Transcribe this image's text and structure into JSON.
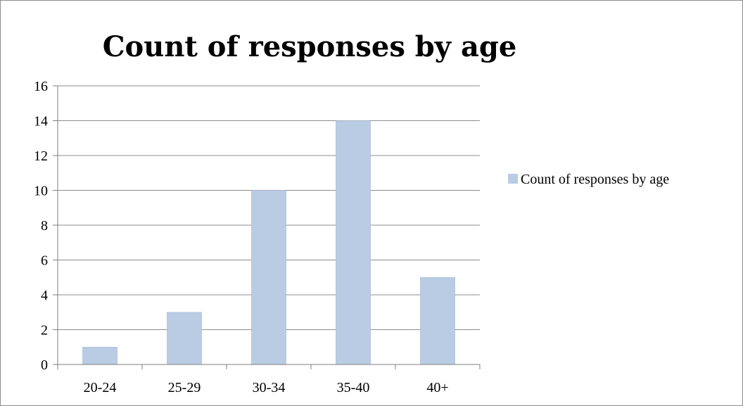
{
  "chart_data": {
    "type": "bar",
    "title": "Count of responses by age",
    "xlabel": "",
    "ylabel": "",
    "categories": [
      "20-24",
      "25-29",
      "30-34",
      "35-40",
      "40+"
    ],
    "series": [
      {
        "name": "Count of responses by age",
        "values": [
          1,
          3,
          10,
          14,
          5
        ]
      }
    ],
    "ylim": [
      0,
      16
    ],
    "yticks": [
      "0",
      "2",
      "4",
      "6",
      "8",
      "10",
      "12",
      "14",
      "16"
    ],
    "grid": true,
    "legend_position": "right",
    "colors": {
      "bar": "#b9cce4",
      "bar_edge": "#a3b7d2",
      "grid": "#8c8c8c",
      "axis": "#7f7f7f"
    }
  }
}
